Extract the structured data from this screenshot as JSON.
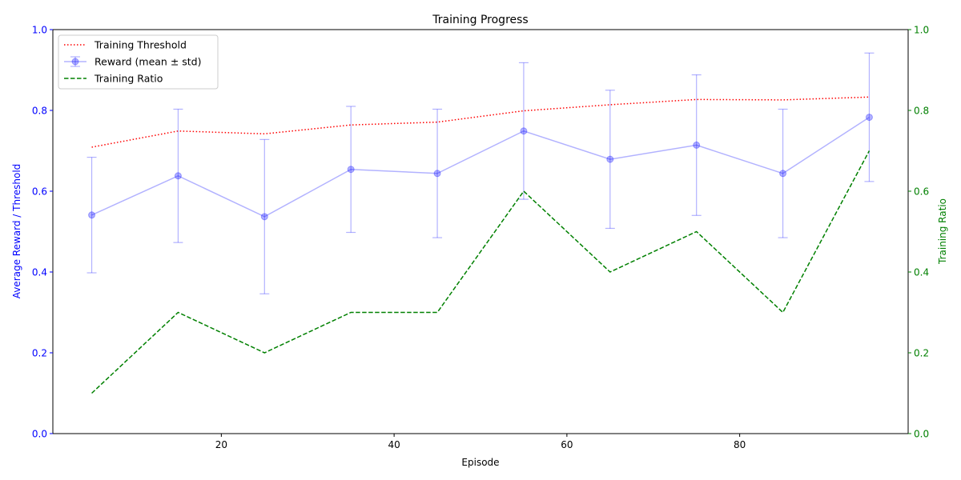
{
  "chart_data": {
    "type": "line",
    "title": "Training Progress",
    "xlabel": "Episode",
    "ylabel": "Average Reward / Threshold",
    "y2label": "Training Ratio",
    "xlim": [
      0.5,
      99.5
    ],
    "ylim": [
      0,
      1
    ],
    "y2lim": [
      0,
      1
    ],
    "grid": false,
    "legend_position": "top-left",
    "x_ticks": [
      "20",
      "40",
      "60",
      "80"
    ],
    "x_tick_values": [
      20,
      40,
      60,
      80
    ],
    "y_ticks": [
      "0.0",
      "0.2",
      "0.4",
      "0.6",
      "0.8",
      "1.0"
    ],
    "y_tick_values": [
      0,
      0.2,
      0.4,
      0.6,
      0.8,
      1.0
    ],
    "y2_ticks": [
      "0.0",
      "0.2",
      "0.4",
      "0.6",
      "0.8",
      "1.0"
    ],
    "y2_tick_values": [
      0,
      0.2,
      0.4,
      0.6,
      0.8,
      1.0
    ],
    "x": [
      5,
      15,
      25,
      35,
      45,
      55,
      65,
      75,
      85,
      95
    ],
    "series": [
      {
        "name": "Training Threshold",
        "axis": "left",
        "style": "dotted",
        "color": "#ff0000",
        "values": [
          0.709,
          0.749,
          0.742,
          0.764,
          0.771,
          0.799,
          0.814,
          0.827,
          0.826,
          0.833
        ]
      },
      {
        "name": "Reward (mean ± std)",
        "axis": "left",
        "style": "solid-markers-errorbars",
        "color": "#0000ff",
        "values": [
          0.541,
          0.638,
          0.537,
          0.654,
          0.644,
          0.749,
          0.679,
          0.714,
          0.644,
          0.783
        ],
        "std": [
          0.143,
          0.165,
          0.191,
          0.156,
          0.159,
          0.169,
          0.171,
          0.174,
          0.159,
          0.159
        ]
      },
      {
        "name": "Training Ratio",
        "axis": "right",
        "style": "dashed",
        "color": "#008000",
        "values": [
          0.1,
          0.3,
          0.2,
          0.3,
          0.3,
          0.6,
          0.4,
          0.5,
          0.3,
          0.7
        ]
      }
    ],
    "colors": {
      "left_axis": "#0000ff",
      "right_axis": "#008000"
    }
  }
}
